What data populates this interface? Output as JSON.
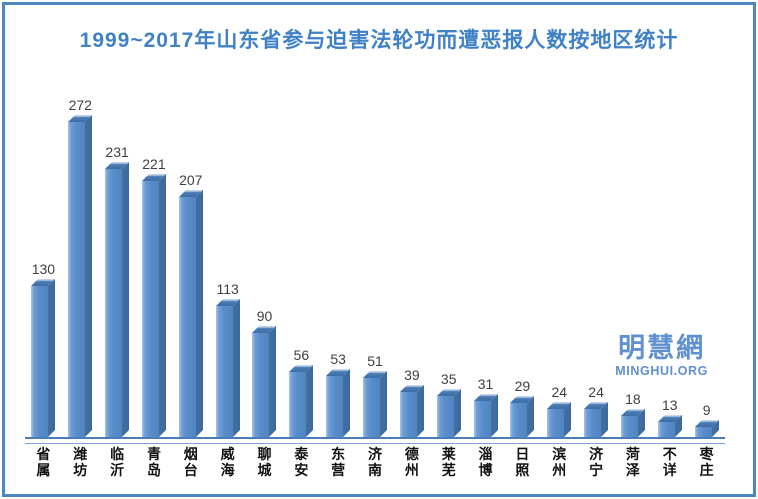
{
  "title": "1999~2017年山东省参与迫害法轮功而遭恶报人数按地区统计",
  "watermark": {
    "cjk": "明慧網",
    "latin": "MINGHUI.ORG"
  },
  "chart_data": {
    "type": "bar",
    "title": "1999~2017年山东省参与迫害法轮功而遭恶报人数按地区统计",
    "categories": [
      "省属",
      "潍坊",
      "临沂",
      "青岛",
      "烟台",
      "威海",
      "聊城",
      "泰安",
      "东营",
      "济南",
      "德州",
      "莱芜",
      "淄博",
      "日照",
      "滨州",
      "济宁",
      "菏泽",
      "不详",
      "枣庄"
    ],
    "values": [
      130,
      272,
      231,
      221,
      207,
      113,
      90,
      56,
      53,
      51,
      39,
      35,
      31,
      29,
      24,
      24,
      18,
      13,
      9
    ],
    "xlabel": "",
    "ylabel": "",
    "ylim": [
      0,
      280
    ],
    "grid": false,
    "legend": false,
    "bar_style": "3d",
    "value_labels_shown": true
  },
  "colors": {
    "frame_border": "#4d87c2",
    "title": "#3e81c6",
    "bar_front": "#5a8eca",
    "bar_front_highlight": "#a5c4e9",
    "bar_side": "#3c69a0",
    "bar_top_dark": "#3e6da6",
    "bar_top_highlight": "#c2d4ea",
    "axis_line": "#4a7cba",
    "value_label": "#3f3f3f",
    "category_label": "#111111",
    "watermark": "#5f90cf"
  }
}
